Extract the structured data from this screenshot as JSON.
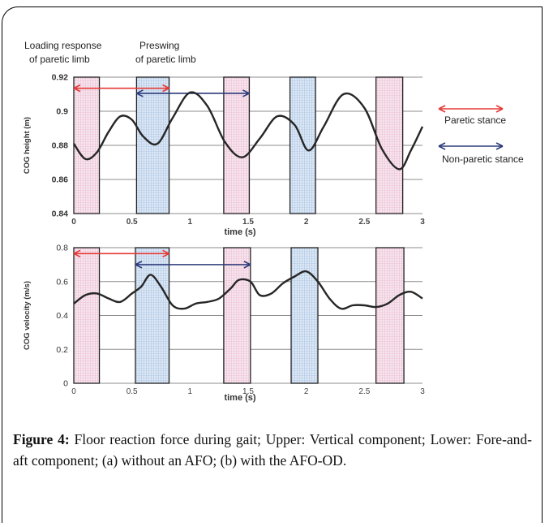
{
  "figure": {
    "caption_label": "Figure 4:",
    "caption_text": " Floor reaction force during gait; Upper: Vertical component; Lower: Fore-and-aft component; (a) without an AFO; (b) with the AFO-OD."
  },
  "annotations": {
    "loading_line1": "Loading  response",
    "loading_line2": "of paretic limb",
    "preswing_line1": "Preswing",
    "preswing_line2": " of paretic limb"
  },
  "legend": {
    "paretic": "Paretic stance",
    "nonparetic": "Non-paretic stance",
    "paretic_color": "#e53935",
    "nonparetic_color": "#2b3a7a"
  },
  "colors": {
    "pink_fill": "#f6e6ef",
    "pink_grid": "#eec0d4",
    "blue_fill": "#dde8f5",
    "blue_grid": "#b0c8e6",
    "curve": "#262626"
  },
  "chart_data": [
    {
      "type": "line",
      "xlabel": "time (s)",
      "ylabel": "COG height (m)",
      "xlim": [
        0,
        3
      ],
      "ylim": [
        0.84,
        0.92
      ],
      "x_ticks": [
        "0",
        "0.5",
        "1",
        "1.5",
        "2",
        "2.5",
        "3"
      ],
      "y_ticks": [
        "0.84",
        "0.86",
        "0.88",
        "0.9",
        "0.92"
      ],
      "grid": true,
      "phase_bands": [
        {
          "kind": "loading",
          "start": 0.0,
          "end": 0.22
        },
        {
          "kind": "preswing",
          "start": 0.54,
          "end": 0.82
        },
        {
          "kind": "loading",
          "start": 1.29,
          "end": 1.51
        },
        {
          "kind": "preswing",
          "start": 1.86,
          "end": 2.08
        },
        {
          "kind": "loading",
          "start": 2.6,
          "end": 2.83
        }
      ],
      "stance_arrows": [
        {
          "kind": "paretic",
          "y": 0.9135,
          "start": 0.0,
          "end": 0.82
        },
        {
          "kind": "nonparetic",
          "y": 0.9105,
          "start": 0.54,
          "end": 1.51
        }
      ],
      "series": [
        {
          "x": [
            0,
            0.1,
            0.2,
            0.3,
            0.4,
            0.5,
            0.6,
            0.72,
            0.85,
            1.0,
            1.15,
            1.3,
            1.45,
            1.6,
            1.75,
            1.9,
            2.02,
            2.15,
            2.32,
            2.5,
            2.65,
            2.8,
            2.9,
            3.0
          ],
          "y": [
            0.881,
            0.872,
            0.876,
            0.888,
            0.897,
            0.895,
            0.885,
            0.881,
            0.896,
            0.911,
            0.903,
            0.882,
            0.873,
            0.884,
            0.897,
            0.892,
            0.877,
            0.891,
            0.91,
            0.902,
            0.878,
            0.866,
            0.877,
            0.891
          ]
        }
      ]
    },
    {
      "type": "line",
      "xlabel": "time (s)",
      "ylabel": "COG velocity (m/s)",
      "xlim": [
        0,
        3
      ],
      "ylim": [
        0,
        0.8
      ],
      "x_ticks": [
        "0",
        "0.5",
        "1",
        "1.5",
        "2",
        "2.5",
        "3"
      ],
      "y_ticks": [
        "0",
        "0.2",
        "0.4",
        "0.6",
        "0.8"
      ],
      "grid": true,
      "phase_bands": [
        {
          "kind": "loading",
          "start": 0.0,
          "end": 0.22
        },
        {
          "kind": "preswing",
          "start": 0.53,
          "end": 0.82
        },
        {
          "kind": "loading",
          "start": 1.29,
          "end": 1.52
        },
        {
          "kind": "preswing",
          "start": 1.87,
          "end": 2.1
        },
        {
          "kind": "loading",
          "start": 2.6,
          "end": 2.84
        }
      ],
      "stance_arrows": [
        {
          "kind": "paretic",
          "y": 0.765,
          "start": 0.0,
          "end": 0.82
        },
        {
          "kind": "nonparetic",
          "y": 0.7,
          "start": 0.53,
          "end": 1.52
        }
      ],
      "series": [
        {
          "x": [
            0,
            0.1,
            0.2,
            0.3,
            0.4,
            0.5,
            0.58,
            0.66,
            0.75,
            0.85,
            0.95,
            1.05,
            1.15,
            1.25,
            1.35,
            1.42,
            1.52,
            1.6,
            1.7,
            1.8,
            1.9,
            2.0,
            2.1,
            2.2,
            2.3,
            2.4,
            2.5,
            2.6,
            2.7,
            2.8,
            2.9,
            3.0
          ],
          "y": [
            0.47,
            0.52,
            0.53,
            0.5,
            0.48,
            0.53,
            0.57,
            0.64,
            0.57,
            0.46,
            0.44,
            0.47,
            0.48,
            0.5,
            0.56,
            0.61,
            0.6,
            0.52,
            0.53,
            0.59,
            0.63,
            0.66,
            0.6,
            0.5,
            0.44,
            0.46,
            0.46,
            0.45,
            0.47,
            0.52,
            0.54,
            0.5
          ]
        }
      ]
    }
  ]
}
